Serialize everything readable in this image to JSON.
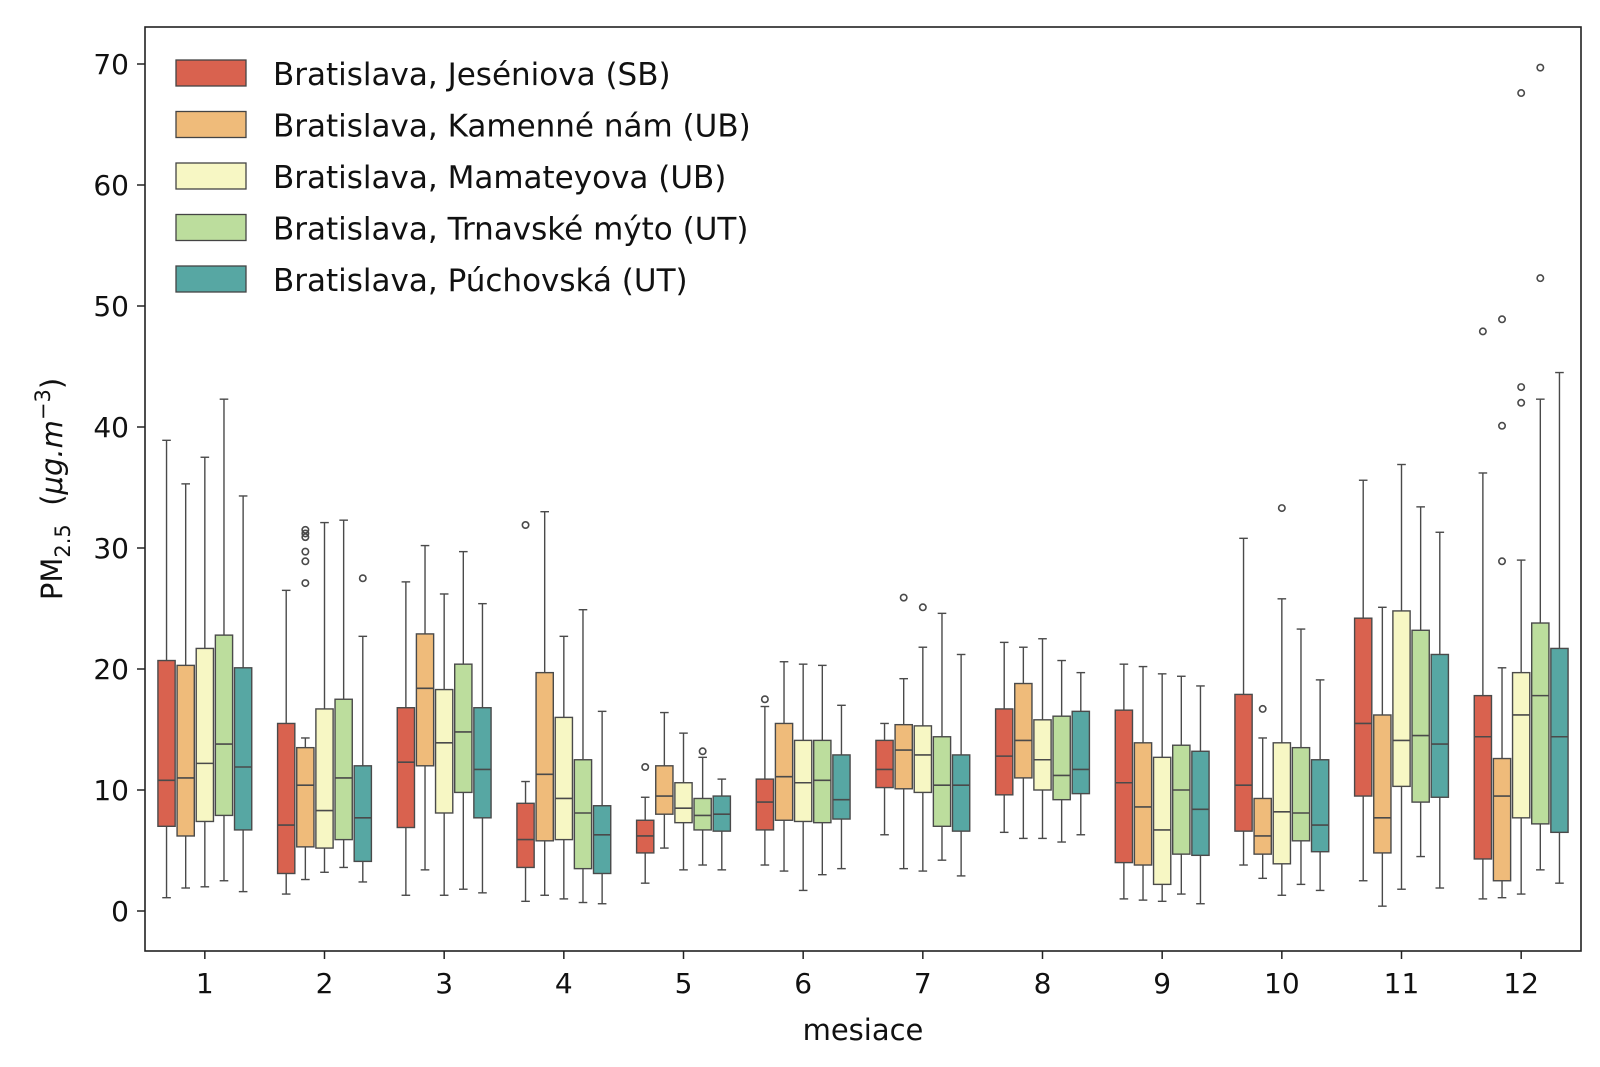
{
  "chart_data": {
    "type": "boxplot",
    "title": "",
    "xlabel": "mesiace",
    "ylabel": {
      "main": "PM",
      "sub": "2.5",
      "unit_open": "(",
      "unit_mu": "μg.m",
      "unit_exp": "−3",
      "unit_close": ")"
    },
    "ylim": [
      -3,
      73
    ],
    "yticks": [
      "0",
      "10",
      "20",
      "30",
      "40",
      "50",
      "60",
      "70"
    ],
    "categories": [
      "1",
      "2",
      "3",
      "4",
      "5",
      "6",
      "7",
      "8",
      "9",
      "10",
      "11",
      "12"
    ],
    "legend_position": "top-left",
    "series": [
      {
        "name": "Bratislava, Jeséniova (SB)",
        "color": "#d9624f",
        "boxes": [
          {
            "whislo": 1.1,
            "q1": 7.0,
            "med": 10.8,
            "q3": 20.7,
            "whishi": 38.9,
            "fliers": []
          },
          {
            "whislo": 1.4,
            "q1": 3.1,
            "med": 7.1,
            "q3": 15.5,
            "whishi": 26.5,
            "fliers": []
          },
          {
            "whislo": 1.3,
            "q1": 6.9,
            "med": 12.3,
            "q3": 16.8,
            "whishi": 27.2,
            "fliers": []
          },
          {
            "whislo": 0.8,
            "q1": 3.6,
            "med": 5.9,
            "q3": 8.9,
            "whishi": 10.7,
            "fliers": [
              31.9
            ]
          },
          {
            "whislo": 2.3,
            "q1": 4.8,
            "med": 6.2,
            "q3": 7.5,
            "whishi": 9.4,
            "fliers": [
              11.9
            ]
          },
          {
            "whislo": 3.8,
            "q1": 6.7,
            "med": 9.0,
            "q3": 10.9,
            "whishi": 16.9,
            "fliers": [
              17.5
            ]
          },
          {
            "whislo": 6.3,
            "q1": 10.2,
            "med": 11.7,
            "q3": 14.1,
            "whishi": 15.5,
            "fliers": []
          },
          {
            "whislo": 6.5,
            "q1": 9.6,
            "med": 12.8,
            "q3": 16.7,
            "whishi": 22.2,
            "fliers": []
          },
          {
            "whislo": 1.0,
            "q1": 4.0,
            "med": 10.6,
            "q3": 16.6,
            "whishi": 20.4,
            "fliers": []
          },
          {
            "whislo": 3.8,
            "q1": 6.6,
            "med": 10.4,
            "q3": 17.9,
            "whishi": 30.8,
            "fliers": []
          },
          {
            "whislo": 2.5,
            "q1": 9.5,
            "med": 15.5,
            "q3": 24.2,
            "whishi": 35.6,
            "fliers": []
          },
          {
            "whislo": 1.0,
            "q1": 4.3,
            "med": 14.4,
            "q3": 17.8,
            "whishi": 36.2,
            "fliers": [
              47.9
            ]
          }
        ]
      },
      {
        "name": "Bratislava, Kamenné nám (UB)",
        "color": "#efbb7a",
        "boxes": [
          {
            "whislo": 1.9,
            "q1": 6.2,
            "med": 11.0,
            "q3": 20.3,
            "whishi": 35.3,
            "fliers": []
          },
          {
            "whislo": 2.6,
            "q1": 5.3,
            "med": 10.4,
            "q3": 13.5,
            "whishi": 14.3,
            "fliers": [
              27.1,
              28.9,
              29.7,
              30.9,
              31.2,
              31.5
            ]
          },
          {
            "whislo": 3.4,
            "q1": 12.0,
            "med": 18.4,
            "q3": 22.9,
            "whishi": 30.2,
            "fliers": []
          },
          {
            "whislo": 1.3,
            "q1": 5.8,
            "med": 11.3,
            "q3": 19.7,
            "whishi": 33.0,
            "fliers": []
          },
          {
            "whislo": 5.2,
            "q1": 8.0,
            "med": 9.5,
            "q3": 12.0,
            "whishi": 16.4,
            "fliers": []
          },
          {
            "whislo": 3.3,
            "q1": 7.5,
            "med": 11.1,
            "q3": 15.5,
            "whishi": 20.6,
            "fliers": []
          },
          {
            "whislo": 3.5,
            "q1": 10.1,
            "med": 13.3,
            "q3": 15.4,
            "whishi": 19.2,
            "fliers": [
              25.9
            ]
          },
          {
            "whislo": 6.0,
            "q1": 11.0,
            "med": 14.1,
            "q3": 18.8,
            "whishi": 21.8,
            "fliers": []
          },
          {
            "whislo": 0.9,
            "q1": 3.8,
            "med": 8.6,
            "q3": 13.9,
            "whishi": 20.2,
            "fliers": []
          },
          {
            "whislo": 2.7,
            "q1": 4.7,
            "med": 6.2,
            "q3": 9.3,
            "whishi": 14.3,
            "fliers": [
              16.7
            ]
          },
          {
            "whislo": 0.4,
            "q1": 4.8,
            "med": 7.7,
            "q3": 16.2,
            "whishi": 25.1,
            "fliers": []
          },
          {
            "whislo": 1.1,
            "q1": 2.5,
            "med": 9.5,
            "q3": 12.6,
            "whishi": 20.1,
            "fliers": [
              28.9,
              40.1,
              48.9
            ]
          }
        ]
      },
      {
        "name": "Bratislava, Mamateyova (UB)",
        "color": "#f7f7c4",
        "boxes": [
          {
            "whislo": 2.0,
            "q1": 7.4,
            "med": 12.2,
            "q3": 21.7,
            "whishi": 37.5,
            "fliers": []
          },
          {
            "whislo": 3.2,
            "q1": 5.2,
            "med": 8.3,
            "q3": 16.7,
            "whishi": 32.1,
            "fliers": []
          },
          {
            "whislo": 1.3,
            "q1": 8.1,
            "med": 13.9,
            "q3": 18.3,
            "whishi": 26.2,
            "fliers": []
          },
          {
            "whislo": 1.0,
            "q1": 5.9,
            "med": 9.3,
            "q3": 16.0,
            "whishi": 22.7,
            "fliers": []
          },
          {
            "whislo": 3.4,
            "q1": 7.3,
            "med": 8.5,
            "q3": 10.6,
            "whishi": 14.7,
            "fliers": []
          },
          {
            "whislo": 1.7,
            "q1": 7.4,
            "med": 10.6,
            "q3": 14.1,
            "whishi": 20.4,
            "fliers": []
          },
          {
            "whislo": 3.3,
            "q1": 9.8,
            "med": 12.9,
            "q3": 15.3,
            "whishi": 21.8,
            "fliers": [
              25.1
            ]
          },
          {
            "whislo": 6.0,
            "q1": 10.0,
            "med": 12.5,
            "q3": 15.8,
            "whishi": 22.5,
            "fliers": []
          },
          {
            "whislo": 0.8,
            "q1": 2.2,
            "med": 6.7,
            "q3": 12.7,
            "whishi": 19.6,
            "fliers": []
          },
          {
            "whislo": 1.3,
            "q1": 3.9,
            "med": 8.2,
            "q3": 13.9,
            "whishi": 25.8,
            "fliers": [
              33.3
            ]
          },
          {
            "whislo": 1.8,
            "q1": 10.3,
            "med": 14.1,
            "q3": 24.8,
            "whishi": 36.9,
            "fliers": []
          },
          {
            "whislo": 1.4,
            "q1": 7.7,
            "med": 16.2,
            "q3": 19.7,
            "whishi": 29.0,
            "fliers": [
              42.0,
              43.3,
              67.6
            ]
          }
        ]
      },
      {
        "name": "Bratislava, Trnavské mýto (UT)",
        "color": "#bcdd9d",
        "boxes": [
          {
            "whislo": 2.5,
            "q1": 7.9,
            "med": 13.8,
            "q3": 22.8,
            "whishi": 42.3,
            "fliers": []
          },
          {
            "whislo": 3.6,
            "q1": 5.9,
            "med": 11.0,
            "q3": 17.5,
            "whishi": 32.3,
            "fliers": []
          },
          {
            "whislo": 1.8,
            "q1": 9.8,
            "med": 14.8,
            "q3": 20.4,
            "whishi": 29.7,
            "fliers": []
          },
          {
            "whislo": 0.7,
            "q1": 3.5,
            "med": 8.1,
            "q3": 12.5,
            "whishi": 24.9,
            "fliers": []
          },
          {
            "whislo": 3.8,
            "q1": 6.7,
            "med": 7.9,
            "q3": 9.3,
            "whishi": 12.7,
            "fliers": [
              13.2
            ]
          },
          {
            "whislo": 3.0,
            "q1": 7.3,
            "med": 10.8,
            "q3": 14.1,
            "whishi": 20.3,
            "fliers": []
          },
          {
            "whislo": 4.2,
            "q1": 7.0,
            "med": 10.4,
            "q3": 14.4,
            "whishi": 24.6,
            "fliers": []
          },
          {
            "whislo": 5.7,
            "q1": 9.2,
            "med": 11.2,
            "q3": 16.1,
            "whishi": 20.7,
            "fliers": []
          },
          {
            "whislo": 1.4,
            "q1": 4.7,
            "med": 10.0,
            "q3": 13.7,
            "whishi": 19.4,
            "fliers": []
          },
          {
            "whislo": 2.2,
            "q1": 5.8,
            "med": 8.1,
            "q3": 13.5,
            "whishi": 23.3,
            "fliers": []
          },
          {
            "whislo": 4.5,
            "q1": 9.0,
            "med": 14.5,
            "q3": 23.2,
            "whishi": 33.4,
            "fliers": []
          },
          {
            "whislo": 3.4,
            "q1": 7.2,
            "med": 17.8,
            "q3": 23.8,
            "whishi": 42.3,
            "fliers": [
              52.3,
              69.7
            ]
          }
        ]
      },
      {
        "name": "Bratislava, Púchovská (UT)",
        "color": "#57a7a3",
        "boxes": [
          {
            "whislo": 1.6,
            "q1": 6.7,
            "med": 11.9,
            "q3": 20.1,
            "whishi": 34.3,
            "fliers": []
          },
          {
            "whislo": 2.4,
            "q1": 4.1,
            "med": 7.7,
            "q3": 12.0,
            "whishi": 22.7,
            "fliers": [
              27.5
            ]
          },
          {
            "whislo": 1.5,
            "q1": 7.7,
            "med": 11.7,
            "q3": 16.8,
            "whishi": 25.4,
            "fliers": []
          },
          {
            "whislo": 0.6,
            "q1": 3.1,
            "med": 6.3,
            "q3": 8.7,
            "whishi": 16.5,
            "fliers": []
          },
          {
            "whislo": 3.4,
            "q1": 6.6,
            "med": 8.0,
            "q3": 9.5,
            "whishi": 10.9,
            "fliers": []
          },
          {
            "whislo": 3.5,
            "q1": 7.6,
            "med": 9.2,
            "q3": 12.9,
            "whishi": 17.0,
            "fliers": []
          },
          {
            "whislo": 2.9,
            "q1": 6.6,
            "med": 10.4,
            "q3": 12.9,
            "whishi": 21.2,
            "fliers": []
          },
          {
            "whislo": 6.3,
            "q1": 9.7,
            "med": 11.7,
            "q3": 16.5,
            "whishi": 19.7,
            "fliers": []
          },
          {
            "whislo": 0.6,
            "q1": 4.6,
            "med": 8.4,
            "q3": 13.2,
            "whishi": 18.6,
            "fliers": []
          },
          {
            "whislo": 1.7,
            "q1": 4.9,
            "med": 7.1,
            "q3": 12.5,
            "whishi": 19.1,
            "fliers": []
          },
          {
            "whislo": 1.9,
            "q1": 9.4,
            "med": 13.8,
            "q3": 21.2,
            "whishi": 31.3,
            "fliers": []
          },
          {
            "whislo": 2.3,
            "q1": 6.5,
            "med": 14.4,
            "q3": 21.7,
            "whishi": 44.5,
            "fliers": []
          }
        ]
      }
    ]
  }
}
